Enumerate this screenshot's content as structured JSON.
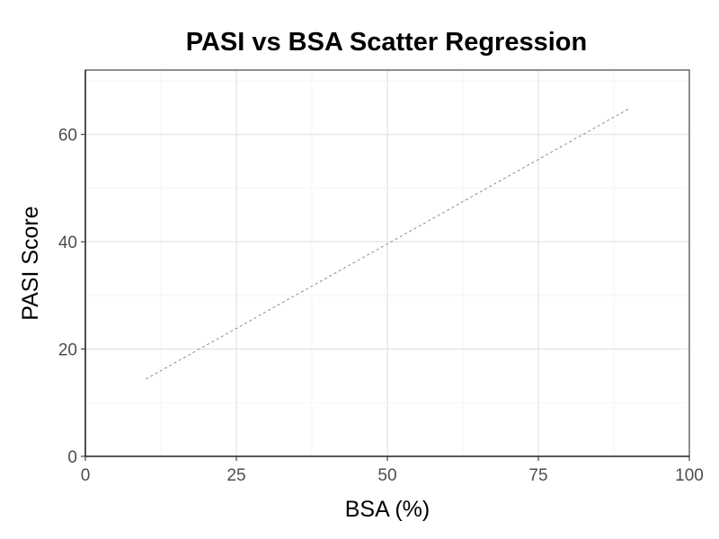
{
  "chart_data": {
    "type": "scatter",
    "title": "PASI vs BSA Scatter Regression",
    "xlabel": "BSA (%)",
    "ylabel": "PASI Score",
    "xlim": [
      0,
      100
    ],
    "ylim": [
      0,
      72
    ],
    "x_ticks": [
      0,
      25,
      50,
      75,
      100
    ],
    "y_ticks": [
      0,
      20,
      40,
      60
    ],
    "x_tick_labels": [
      "0",
      "25",
      "50",
      "75",
      "100"
    ],
    "y_tick_labels": [
      "0",
      "20",
      "40",
      "60"
    ],
    "points": [],
    "regression_line": {
      "x": [
        10,
        90
      ],
      "y": [
        14.4,
        64.8
      ],
      "style": "dashed",
      "color": "#808080"
    },
    "grid": true,
    "legend": "none",
    "colors": {
      "background": "#ffffff",
      "grid_major": "#e0e0e0",
      "grid_minor": "#f0f0f0",
      "axis": "#000000",
      "tick_text": "#4d4d4d"
    }
  }
}
